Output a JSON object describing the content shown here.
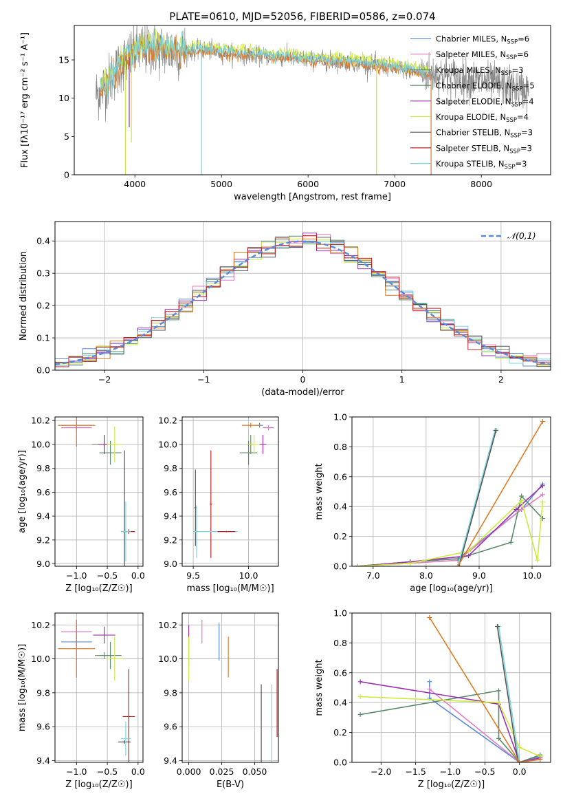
{
  "figure": {
    "title": "PLATE=0610, MJD=52056, FIBERID=0586, z=0.074"
  },
  "colors": {
    "chabrier_miles": "#5b8bd8",
    "salpeter_miles": "#e07ec0",
    "kroupa_miles": "#6e8e5a",
    "chabrier_elodie": "#5a8a6a",
    "salpeter_elodie": "#9a30b0",
    "kroupa_elodie": "#cdea3c",
    "chabrier_stelib": "#555555",
    "salpeter_stelib": "#c02020",
    "kroupa_stelib": "#7ad6e0",
    "orange": "#e07a22",
    "data_grey": "#888888",
    "grid": "#b0b0b0"
  },
  "chart_data": [
    {
      "type": "line",
      "panel": "spectrum",
      "title": "PLATE=0610, MJD=52056, FIBERID=0586, z=0.074",
      "xlabel": "wavelength [Angstrom, rest frame]",
      "ylabel": "Flux [fλ10⁻¹⁷ erg cm⁻² s⁻¹ A⁻¹]",
      "xlim": [
        3300,
        8800
      ],
      "ylim": [
        0,
        19.5
      ],
      "xticks": [
        4000,
        5000,
        6000,
        7000,
        8000
      ],
      "yticks": [
        0,
        5,
        10,
        15
      ],
      "legend_position": "top-right",
      "legend": [
        {
          "label": "Chabrier MILES, N",
          "sub": "SSP",
          "suffix": "=6",
          "color": "#5b8bd8"
        },
        {
          "label": "Salpeter MILES, N",
          "sub": "SSP",
          "suffix": "=6",
          "color": "#e07ec0"
        },
        {
          "label": "Kroupa MILES, N",
          "sub": "SSP",
          "suffix": "=3",
          "color": "#6e8e5a"
        },
        {
          "label": "Chabrier ELODIE, N",
          "sub": "SSP",
          "suffix": "=5",
          "color": "#5a8a6a"
        },
        {
          "label": "Salpeter ELODIE, N",
          "sub": "SSP",
          "suffix": "=4",
          "color": "#9a30b0"
        },
        {
          "label": "Kroupa ELODIE, N",
          "sub": "SSP",
          "suffix": "=4",
          "color": "#cdea3c"
        },
        {
          "label": "Chabrier STELIB, N",
          "sub": "SSP",
          "suffix": "=3",
          "color": "#555555"
        },
        {
          "label": "Salpeter STELIB, N",
          "sub": "SSP",
          "suffix": "=3",
          "color": "#c02020"
        },
        {
          "label": "Kroupa STELIB, N",
          "sub": "SSP",
          "suffix": "=3",
          "color": "#7ad6e0"
        }
      ],
      "continuum": {
        "x": [
          3550,
          3650,
          3750,
          3850,
          3950,
          4050,
          4200,
          4400,
          4600,
          4800,
          5000,
          5200,
          5500,
          5800,
          6000,
          6200,
          6400,
          6600,
          6800,
          7000,
          7200,
          7400,
          7600,
          7800,
          8000,
          8200,
          8400,
          8550
        ],
        "y": [
          10.5,
          11.5,
          13.0,
          14.5,
          15.5,
          16.3,
          16.5,
          16.2,
          16.1,
          16.3,
          16.0,
          15.8,
          15.5,
          15.3,
          15.0,
          14.9,
          14.8,
          14.6,
          14.3,
          14.0,
          13.6,
          13.2,
          12.9,
          12.6,
          12.2,
          11.8,
          11.4,
          11.0
        ]
      },
      "model_range": [
        3600,
        7400
      ]
    },
    {
      "type": "line",
      "panel": "residual_histogram",
      "xlabel": "(data-model)/error",
      "ylabel": "Normed distribution",
      "xlim": [
        -2.5,
        2.5
      ],
      "ylim": [
        0,
        0.46
      ],
      "xticks": [
        -2,
        -1,
        0,
        1,
        2
      ],
      "yticks": [
        0.0,
        0.1,
        0.2,
        0.3,
        0.4
      ],
      "legend": "𝒩(0,1)",
      "legend_position": "top-right",
      "reference_curve": "standard normal N(0,1)"
    },
    {
      "type": "scatter",
      "panel": "age_vs_Z",
      "xlabel": "Z [log₁₀(Z/Z☉)]",
      "ylabel": "age [log₁₀(age/yr)]",
      "xlim": [
        -1.35,
        0.08
      ],
      "ylim": [
        8.98,
        10.23
      ],
      "xticks": [
        -1.0,
        -0.5,
        0.0
      ],
      "yticks": [
        9.0,
        9.2,
        9.4,
        9.6,
        9.8,
        10.0,
        10.2
      ],
      "points": [
        {
          "series": "Chabrier MILES",
          "x": -1.0,
          "xerr": 0.25,
          "y": 10.16,
          "yerr": 0.02
        },
        {
          "series": "Salpeter MILES",
          "x": -1.0,
          "xerr": 0.25,
          "y": 10.14,
          "yerr": 0.02
        },
        {
          "series": "Kroupa MILES",
          "x": -0.55,
          "xerr": 0.2,
          "y": 10.0,
          "yerr": 0.08
        },
        {
          "series": "Chabrier ELODIE",
          "x": -0.45,
          "xerr": 0.18,
          "y": 9.93,
          "yerr": 0.1
        },
        {
          "series": "Salpeter ELODIE",
          "x": -0.55,
          "xerr": 0.1,
          "y": 10.0,
          "yerr": 0.08
        },
        {
          "series": "Kroupa ELODIE",
          "x": -0.38,
          "xerr": 0.12,
          "y": 10.0,
          "yerr": 0.15
        },
        {
          "series": "Chabrier STELIB",
          "x": -0.22,
          "xerr": 0.02,
          "y": 9.27,
          "yerr": 0.68
        },
        {
          "series": "Salpeter STELIB",
          "x": -0.15,
          "xerr": 0.1,
          "y": 9.27,
          "yerr": 0.02
        },
        {
          "series": "Kroupa STELIB",
          "x": -0.2,
          "xerr": 0.08,
          "y": 9.27,
          "yerr": 0.25
        },
        {
          "series": "orange",
          "x": -1.0,
          "xerr": 0.3,
          "y": 10.16,
          "yerr": 0.18
        }
      ]
    },
    {
      "type": "scatter",
      "panel": "age_vs_mass",
      "xlabel": "mass [log₁₀(M/M☉)]",
      "ylabel": "",
      "xlim": [
        9.4,
        10.27
      ],
      "ylim": [
        8.98,
        10.23
      ],
      "xticks": [
        9.5,
        10.0
      ],
      "yticks": [
        9.0,
        9.2,
        9.4,
        9.6,
        9.8,
        10.0,
        10.2
      ],
      "points": [
        {
          "series": "Chabrier MILES",
          "x": 10.1,
          "xerr": 0.03,
          "y": 10.16,
          "yerr": 0.02
        },
        {
          "series": "Salpeter MILES",
          "x": 10.18,
          "xerr": 0.05,
          "y": 10.14,
          "yerr": 0.02
        },
        {
          "series": "Kroupa MILES",
          "x": 10.02,
          "xerr": 0.02,
          "y": 10.0,
          "yerr": 0.08
        },
        {
          "series": "Chabrier ELODIE",
          "x": 10.0,
          "xerr": 0.08,
          "y": 9.93,
          "yerr": 0.1
        },
        {
          "series": "Salpeter ELODIE",
          "x": 10.13,
          "xerr": 0.03,
          "y": 10.0,
          "yerr": 0.08
        },
        {
          "series": "Kroupa ELODIE",
          "x": 10.05,
          "xerr": 0.05,
          "y": 10.0,
          "yerr": 0.08
        },
        {
          "series": "Chabrier STELIB",
          "x": 9.52,
          "xerr": 0.01,
          "y": 9.47,
          "yerr": 0.32
        },
        {
          "series": "Salpeter STELIB",
          "x": 9.66,
          "xerr": 0.01,
          "y": 9.5,
          "yerr": 0.45
        },
        {
          "series": "Kroupa STELIB",
          "x": 9.53,
          "xerr": 0.01,
          "y": 9.27,
          "yerr": 0.22
        },
        {
          "series": "Kroupa STELIB",
          "x": 9.7,
          "xerr": 0.2,
          "y": 9.27,
          "yerr": 0.005
        },
        {
          "series": "Salpeter STELIB",
          "x": 9.8,
          "xerr": 0.08,
          "y": 9.27,
          "yerr": 0.005
        },
        {
          "series": "orange",
          "x": 10.02,
          "xerr": 0.08,
          "y": 10.16,
          "yerr": 0.02
        }
      ]
    },
    {
      "type": "line",
      "panel": "mass_weight_vs_age",
      "xlabel": "age [log₁₀(age/yr)]",
      "ylabel": "mass weight",
      "xlim": [
        6.6,
        10.35
      ],
      "ylim": [
        0,
        1.0
      ],
      "xticks": [
        7,
        8,
        9,
        10
      ],
      "yticks": [
        0.0,
        0.2,
        0.4,
        0.6,
        0.8,
        1.0
      ],
      "series": [
        {
          "name": "Chabrier MILES",
          "x": [
            6.7,
            7.7,
            8.6,
            9.8,
            10.2
          ],
          "y": [
            0.0,
            0.03,
            0.05,
            0.38,
            0.55
          ]
        },
        {
          "name": "Salpeter MILES",
          "x": [
            6.7,
            7.7,
            8.6,
            9.8,
            10.2
          ],
          "y": [
            0.0,
            0.02,
            0.04,
            0.38,
            0.48
          ]
        },
        {
          "name": "Chabrier ELODIE",
          "x": [
            6.7,
            7.7,
            8.6,
            9.6,
            9.8,
            10.2
          ],
          "y": [
            0.0,
            0.03,
            0.05,
            0.16,
            0.47,
            0.32
          ]
        },
        {
          "name": "Salpeter ELODIE",
          "x": [
            6.7,
            7.7,
            8.8,
            9.7,
            10.2
          ],
          "y": [
            0.0,
            0.03,
            0.07,
            0.38,
            0.54
          ]
        },
        {
          "name": "Kroupa ELODIE",
          "x": [
            6.7,
            7.7,
            8.8,
            9.8,
            10.1,
            10.2
          ],
          "y": [
            0.0,
            0.02,
            0.1,
            0.44,
            0.04,
            0.43
          ]
        },
        {
          "name": "Kroupa STELIB",
          "x": [
            8.6,
            9.3
          ],
          "y": [
            0.0,
            0.91
          ]
        },
        {
          "name": "Chabrier STELIB",
          "x": [
            8.62,
            9.32
          ],
          "y": [
            0.0,
            0.91
          ]
        },
        {
          "name": "orange",
          "x": [
            8.6,
            10.2
          ],
          "y": [
            0.0,
            0.97
          ]
        }
      ]
    },
    {
      "type": "scatter",
      "panel": "mass_vs_Z",
      "xlabel": "Z [log₁₀(Z/Z☉)]",
      "ylabel": "mass [log₁₀(M/M☉)]",
      "xlim": [
        -1.35,
        0.08
      ],
      "ylim": [
        9.39,
        10.27
      ],
      "xticks": [
        -1.0,
        -0.5,
        0.0
      ],
      "yticks": [
        9.4,
        9.6,
        9.8,
        10.0,
        10.2
      ],
      "points": [
        {
          "series": "Chabrier MILES",
          "x": -1.0,
          "xerr": 0.25,
          "y": 10.1,
          "yerr": 0.03
        },
        {
          "series": "Salpeter MILES",
          "x": -1.0,
          "xerr": 0.25,
          "y": 10.16,
          "yerr": 0.07
        },
        {
          "series": "Kroupa MILES",
          "x": -0.55,
          "xerr": 0.15,
          "y": 10.02,
          "yerr": 0.02
        },
        {
          "series": "Chabrier ELODIE",
          "x": -0.45,
          "xerr": 0.18,
          "y": 10.02,
          "yerr": 0.08
        },
        {
          "series": "Salpeter ELODIE",
          "x": -0.55,
          "xerr": 0.18,
          "y": 10.14,
          "yerr": 0.05
        },
        {
          "series": "Kroupa ELODIE",
          "x": -0.38,
          "xerr": 0.14,
          "y": 10.0,
          "yerr": 0.13
        },
        {
          "series": "Chabrier STELIB",
          "x": -0.22,
          "xerr": 0.1,
          "y": 9.51,
          "yerr": 0.01
        },
        {
          "series": "Salpeter STELIB",
          "x": -0.15,
          "xerr": 0.1,
          "y": 9.66,
          "yerr": 0.28
        },
        {
          "series": "Kroupa STELIB",
          "x": -0.2,
          "xerr": 0.08,
          "y": 9.53,
          "yerr": 0.1
        },
        {
          "series": "orange",
          "x": -1.0,
          "xerr": 0.3,
          "y": 10.06,
          "yerr": 0.17
        }
      ]
    },
    {
      "type": "scatter",
      "panel": "mass_vs_EBV",
      "xlabel": "E(B-V)",
      "ylabel": "",
      "xlim": [
        -0.005,
        0.068
      ],
      "ylim": [
        9.39,
        10.27
      ],
      "xticks": [
        0.0,
        0.025,
        0.05
      ],
      "yticks": [
        9.4,
        9.6,
        9.8,
        10.0,
        10.2
      ],
      "points": [
        {
          "series": "Chabrier MILES",
          "x": 0.023,
          "y": 10.1,
          "yerr": 0.11
        },
        {
          "series": "Salpeter MILES",
          "x": 0.01,
          "y": 10.16,
          "yerr": 0.07
        },
        {
          "series": "Kroupa MILES",
          "x": 0.0,
          "y": 10.02,
          "yerr": 0.06
        },
        {
          "series": "Salpeter ELODIE",
          "x": 0.0,
          "y": 10.14,
          "yerr": 0.06
        },
        {
          "series": "Kroupa ELODIE",
          "x": 0.0,
          "y": 10.0,
          "yerr": 0.13
        },
        {
          "series": "Chabrier STELIB",
          "x": 0.055,
          "y": 9.62,
          "yerr": 0.23
        },
        {
          "series": "Salpeter STELIB",
          "x": 0.067,
          "y": 9.74,
          "yerr": 0.2
        },
        {
          "series": "Kroupa STELIB",
          "x": 0.063,
          "y": 9.62,
          "yerr": 0.23
        },
        {
          "series": "orange",
          "x": 0.03,
          "y": 10.01,
          "yerr": 0.12
        }
      ]
    },
    {
      "type": "line",
      "panel": "mass_weight_vs_Z",
      "xlabel": "Z [log₁₀(Z/Z☉)]",
      "ylabel": "mass weight",
      "xlim": [
        -2.42,
        0.45
      ],
      "ylim": [
        0,
        1.0
      ],
      "xticks": [
        -2.0,
        -1.5,
        -1.0,
        -0.5,
        0.0
      ],
      "yticks": [
        0.0,
        0.2,
        0.4,
        0.6,
        0.8,
        1.0
      ],
      "series": [
        {
          "name": "Chabrier MILES",
          "x": [
            -1.3,
            -1.3,
            0.0,
            0.3
          ],
          "y": [
            0.54,
            0.43,
            0.0,
            0.04
          ]
        },
        {
          "name": "Salpeter MILES",
          "x": [
            -1.3,
            0.0,
            0.3
          ],
          "y": [
            0.49,
            0.0,
            0.02
          ]
        },
        {
          "name": "Chabrier ELODIE",
          "x": [
            -2.3,
            -0.3,
            -0.3,
            0.0,
            0.3
          ],
          "y": [
            0.32,
            0.48,
            0.16,
            0.0,
            0.05
          ]
        },
        {
          "name": "Salpeter ELODIE",
          "x": [
            -2.3,
            -0.3,
            0.0,
            0.3
          ],
          "y": [
            0.54,
            0.39,
            0.0,
            0.03
          ]
        },
        {
          "name": "Kroupa ELODIE",
          "x": [
            -2.3,
            -0.3,
            0.0,
            0.3
          ],
          "y": [
            0.44,
            0.4,
            0.1,
            0.04
          ]
        },
        {
          "name": "Kroupa STELIB",
          "x": [
            -0.3,
            0.0
          ],
          "y": [
            0.91,
            0.0
          ]
        },
        {
          "name": "Chabrier STELIB",
          "x": [
            -0.32,
            -0.02
          ],
          "y": [
            0.91,
            0.0
          ]
        },
        {
          "name": "orange",
          "x": [
            -1.3,
            0.0,
            0.3
          ],
          "y": [
            0.97,
            0.0,
            0.02
          ]
        }
      ]
    }
  ]
}
